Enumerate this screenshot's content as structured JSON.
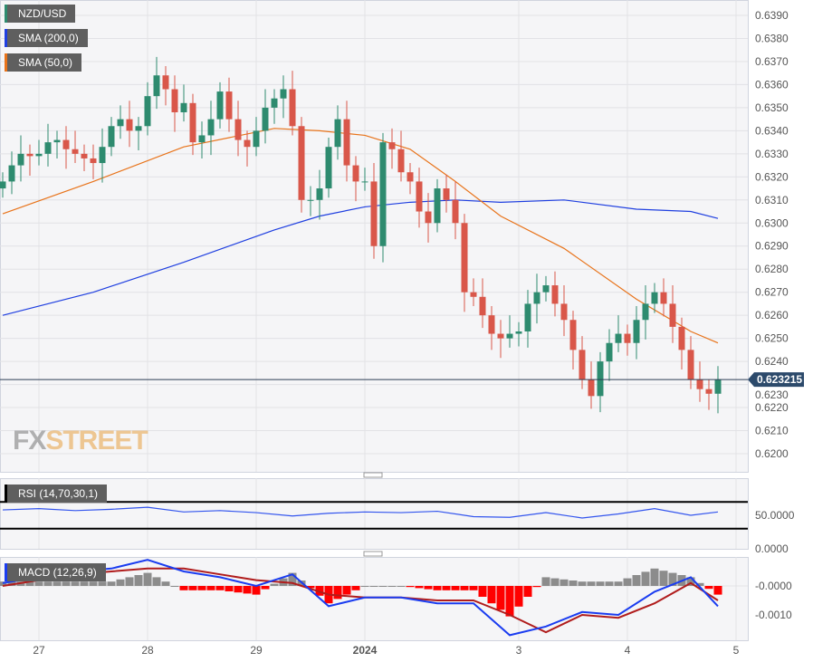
{
  "legend": {
    "pair": "NZD/USD",
    "sma200": "SMA (200,0)",
    "sma50": "SMA (50,0)",
    "rsi": "RSI (14,70,30,1)",
    "macd": "MACD (12,26,9)"
  },
  "logo": {
    "fx": "FX",
    "street": "STREET"
  },
  "colors": {
    "up": "#2e8b6f",
    "down": "#d9574a",
    "sma200": "#1f3fe0",
    "sma50": "#e8731a",
    "macd": "#1a3cf0",
    "signal": "#b01c1c",
    "hist_pos": "#8c8c8c",
    "hist_neg": "#ff0000",
    "rsi": "#3355ee"
  },
  "chart_data": [
    {
      "type": "candlestick",
      "title": "NZD/USD",
      "last_price": "0.623215",
      "x_ticks": [
        {
          "label": "27",
          "index": 4
        },
        {
          "label": "28",
          "index": 16
        },
        {
          "label": "29",
          "index": 28
        },
        {
          "label": "2024",
          "index": 40
        },
        {
          "label": "3",
          "index": 57
        },
        {
          "label": "4",
          "index": 69
        },
        {
          "label": "5",
          "index": 81
        }
      ],
      "y_ticks": [
        "0.6390",
        "0.6380",
        "0.6370",
        "0.6360",
        "0.6350",
        "0.6340",
        "0.6330",
        "0.6320",
        "0.6310",
        "0.6300",
        "0.6290",
        "0.6280",
        "0.6270",
        "0.6260",
        "0.6250",
        "0.6240",
        "0.6230",
        "0.6220",
        "0.6210",
        "0.6200"
      ],
      "ylim": [
        0.6193,
        0.6393
      ],
      "grid": true,
      "close": [
        0.6318,
        0.6325,
        0.633,
        0.6329,
        0.633,
        0.6335,
        0.6336,
        0.6332,
        0.633,
        0.6328,
        0.6326,
        0.6333,
        0.6342,
        0.6345,
        0.634,
        0.6342,
        0.6355,
        0.6364,
        0.6358,
        0.6348,
        0.6352,
        0.6335,
        0.6338,
        0.6345,
        0.6357,
        0.6345,
        0.6336,
        0.6333,
        0.634,
        0.635,
        0.6354,
        0.6358,
        0.6342,
        0.631,
        0.631,
        0.6315,
        0.6333,
        0.6345,
        0.6325,
        0.6318,
        0.6318,
        0.629,
        0.6335,
        0.6332,
        0.6322,
        0.6318,
        0.6305,
        0.63,
        0.6315,
        0.631,
        0.63,
        0.627,
        0.6268,
        0.626,
        0.6252,
        0.625,
        0.6252,
        0.6253,
        0.6265,
        0.627,
        0.6273,
        0.6265,
        0.6258,
        0.6245,
        0.6232,
        0.6225,
        0.624,
        0.6248,
        0.6252,
        0.6248,
        0.6258,
        0.6265,
        0.627,
        0.6265,
        0.6255,
        0.6245,
        0.6232,
        0.6228,
        0.6226,
        0.6232
      ],
      "sma_index": [
        0,
        10,
        20,
        30,
        35,
        40,
        45,
        50,
        55,
        62,
        70,
        76,
        79
      ],
      "sma200": [
        0.626,
        0.627,
        0.6283,
        0.6297,
        0.6303,
        0.6307,
        0.6309,
        0.631,
        0.6309,
        0.631,
        0.6306,
        0.6305,
        0.6302
      ],
      "sma50": [
        0.6304,
        0.6318,
        0.6333,
        0.6341,
        0.634,
        0.6338,
        0.6332,
        0.6318,
        0.6303,
        0.6289,
        0.6267,
        0.6253,
        0.6248
      ]
    },
    {
      "type": "line",
      "title": "RSI (14,70,30,1)",
      "y_ticks": [
        "50.0000",
        "0.0000"
      ],
      "levels": [
        70,
        30
      ],
      "ylim": [
        0,
        100
      ],
      "index": [
        0,
        4,
        8,
        12,
        16,
        20,
        24,
        28,
        32,
        36,
        40,
        44,
        48,
        52,
        56,
        60,
        64,
        68,
        72,
        76,
        79
      ],
      "values": [
        58,
        60,
        57,
        59,
        62,
        55,
        57,
        54,
        49,
        53,
        55,
        54,
        56,
        48,
        47,
        54,
        46,
        52,
        60,
        50,
        55
      ]
    },
    {
      "type": "line",
      "title": "MACD (12,26,9)",
      "y_ticks": [
        "-0.0000",
        "-0.0010"
      ],
      "ylim": [
        -0.0021,
        0.0011
      ],
      "index": [
        0,
        4,
        8,
        12,
        16,
        20,
        24,
        28,
        32,
        36,
        40,
        44,
        48,
        52,
        56,
        60,
        64,
        68,
        72,
        76,
        79
      ],
      "macd": [
        0.0001,
        0.0003,
        0.0005,
        0.0006,
        0.0009,
        0.0005,
        0.0003,
        0.0,
        0.0004,
        -0.0007,
        -0.0004,
        -0.0004,
        -0.0006,
        -0.0006,
        -0.0017,
        -0.0014,
        -0.0009,
        -0.001,
        -0.0002,
        0.0003,
        -0.0007
      ],
      "signal": [
        0.0,
        0.0002,
        0.0004,
        0.0005,
        0.0006,
        0.0006,
        0.0004,
        0.0002,
        0.0001,
        -0.0003,
        -0.0004,
        -0.0004,
        -0.0005,
        -0.0005,
        -0.001,
        -0.0016,
        -0.001,
        -0.0011,
        -0.0006,
        0.0001,
        -0.0005
      ]
    }
  ]
}
